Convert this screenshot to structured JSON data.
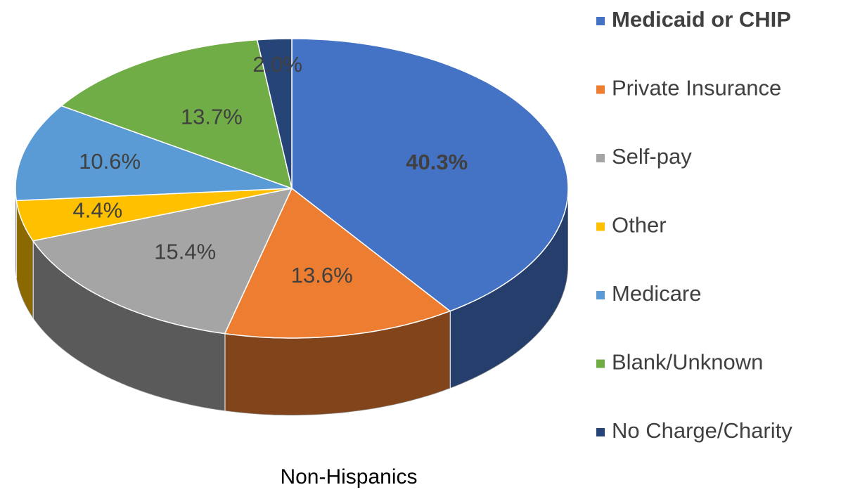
{
  "chart_data": {
    "type": "pie3d",
    "title": "Non-Hispanics",
    "categories": [
      "Medicaid or CHIP",
      "Private Insurance",
      "Self-pay",
      "Other",
      "Medicare",
      "Blank/Unknown",
      "No Charge/Charity"
    ],
    "values": [
      40.3,
      13.6,
      15.4,
      4.4,
      10.6,
      13.7,
      2.0
    ],
    "value_labels": [
      "40.3%",
      "13.6%",
      "15.4%",
      "4.4%",
      "10.6%",
      "13.7%",
      "2.0%"
    ],
    "colors": [
      "#4472c4",
      "#ed7d31",
      "#a5a5a5",
      "#ffc000",
      "#5b9bd5",
      "#70ad47",
      "#264478"
    ],
    "legend": "right"
  }
}
